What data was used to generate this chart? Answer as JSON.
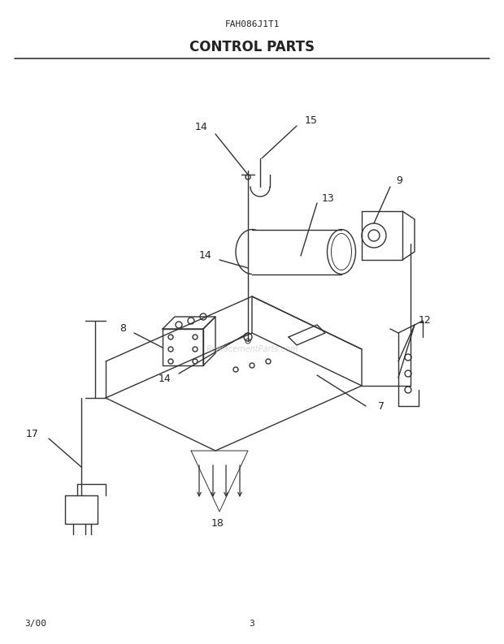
{
  "title": "FAH086J1T1",
  "subtitle": "CONTROL PARTS",
  "footer_left": "3/00",
  "footer_center": "3",
  "bg_color": "#ffffff",
  "line_color": "#333333",
  "text_color": "#222222",
  "watermark": "ReplacementParts.com"
}
